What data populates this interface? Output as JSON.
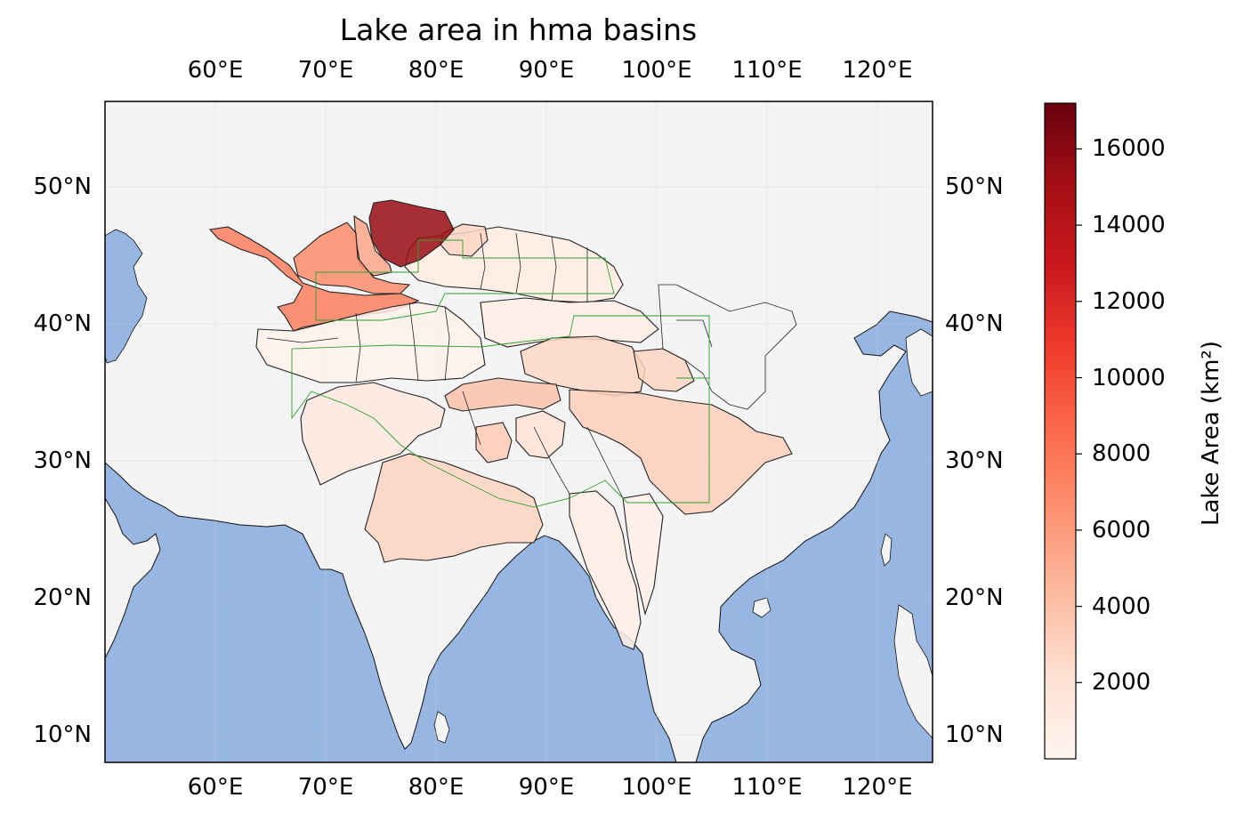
{
  "title": "Lake area in hma basins",
  "top_lon_labels": [
    "60°E",
    "70°E",
    "80°E",
    "90°E",
    "100°E",
    "110°E",
    "120°E"
  ],
  "bottom_lon_labels": [
    "60°E",
    "70°E",
    "80°E",
    "90°E",
    "100°E",
    "110°E",
    "120°E"
  ],
  "left_lat_labels": [
    "50°N",
    "40°N",
    "30°N",
    "20°N",
    "10°N"
  ],
  "right_lat_labels": [
    "50°N",
    "40°N",
    "30°N",
    "20°N",
    "10°N"
  ],
  "colorbar": {
    "title": "Lake Area (km²)",
    "ticks": [
      "16000",
      "14000",
      "12000",
      "10000",
      "8000",
      "6000",
      "4000",
      "2000"
    ],
    "tick_values": [
      16000,
      14000,
      12000,
      10000,
      8000,
      6000,
      4000,
      2000
    ],
    "range": [
      0,
      17200
    ],
    "colormap": "Reds",
    "colors": [
      "#fff5f0",
      "#fee0d2",
      "#fcbba1",
      "#fc9272",
      "#fb6a4a",
      "#ef3b2c",
      "#cb181d",
      "#a50f15",
      "#67000d"
    ]
  },
  "map_extent": {
    "lon": [
      50,
      125
    ],
    "lat": [
      8,
      56
    ]
  },
  "colors": {
    "ocean": "#97b6e1",
    "land": "#f4f4f4",
    "border": "#222222",
    "region_outline": "#2ca02c"
  },
  "basins": [
    {
      "id": "balkhash",
      "lake_area_km2": 15500
    },
    {
      "id": "tarim-syr-darya",
      "lake_area_km2": 6800
    },
    {
      "id": "amu-darya",
      "lake_area_km2": 7500
    },
    {
      "id": "ili",
      "lake_area_km2": 5400
    },
    {
      "id": "northern-kazakh",
      "lake_area_km2": 2800
    },
    {
      "id": "qaidam",
      "lake_area_km2": 2700
    },
    {
      "id": "yellow-headwaters",
      "lake_area_km2": 2900
    },
    {
      "id": "inner-tibet",
      "lake_area_km2": 3900
    },
    {
      "id": "yangtze",
      "lake_area_km2": 3200
    },
    {
      "id": "ganges",
      "lake_area_km2": 2900
    },
    {
      "id": "brahmaputra",
      "lake_area_km2": 3400
    },
    {
      "id": "indus",
      "lake_area_km2": 1300
    },
    {
      "id": "salween",
      "lake_area_km2": 1900
    },
    {
      "id": "mekong",
      "lake_area_km2": 700
    },
    {
      "id": "irrawaddy",
      "lake_area_km2": 500
    },
    {
      "id": "hexi",
      "lake_area_km2": 700
    },
    {
      "id": "west-tarim",
      "lake_area_km2": 400
    },
    {
      "id": "junggar",
      "lake_area_km2": 900
    }
  ]
}
